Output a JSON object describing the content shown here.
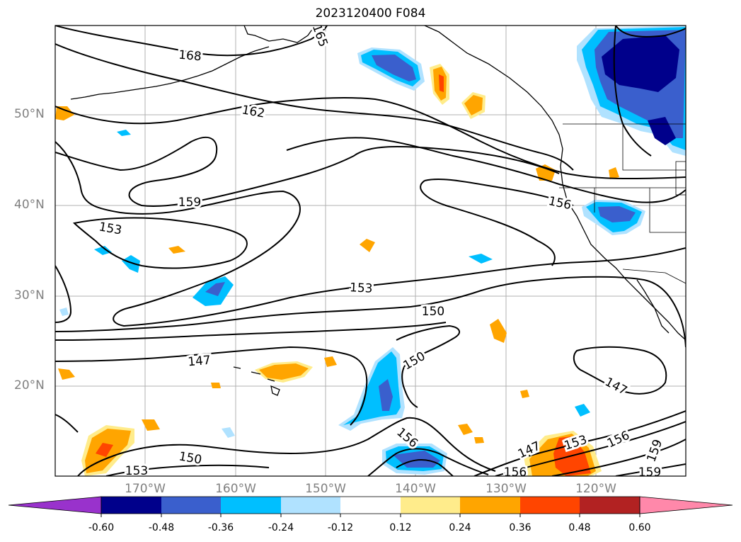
{
  "title": "2023120400 F084",
  "axes": {
    "lat_labels": [
      "50°N",
      "40°N",
      "30°N",
      "20°N"
    ],
    "lon_labels": [
      "170°W",
      "160°W",
      "150°W",
      "140°W",
      "130°W",
      "120°W"
    ]
  },
  "contours": {
    "color": "#000000",
    "labels": [
      "168",
      "162",
      "159",
      "153",
      "153",
      "150",
      "147",
      "150",
      "156",
      "147",
      "153",
      "156",
      "150",
      "153",
      "147",
      "156",
      "159",
      "159",
      "156",
      "165"
    ]
  },
  "colorbar": {
    "ticks": [
      "-0.60",
      "-0.48",
      "-0.36",
      "-0.24",
      "-0.12",
      "0.12",
      "0.24",
      "0.36",
      "0.48",
      "0.60"
    ],
    "colors": [
      "#9932cc",
      "#00008b",
      "#3a5fcd",
      "#00bfff",
      "#b0e2ff",
      "#ffffff",
      "#ffec8b",
      "#ffa500",
      "#ff4500",
      "#b22222",
      "#ff88aa"
    ]
  },
  "shading": {
    "blue_dark": "#00008b",
    "blue_mid": "#3a5fcd",
    "blue_bright": "#00bfff",
    "blue_light": "#b0e2ff",
    "yellow": "#ffec8b",
    "orange": "#ffa500",
    "red": "#ff4500"
  }
}
